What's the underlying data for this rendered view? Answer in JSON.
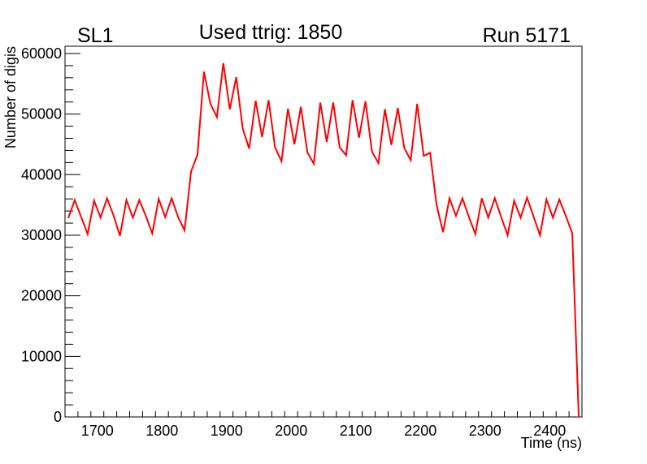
{
  "chart_data": {
    "type": "line",
    "title": "Used ttrig: 1850",
    "left_label": "SL1",
    "right_label": "Run 5171",
    "xlabel": "Time (ns)",
    "ylabel": "Number of digis",
    "xlim": [
      1650,
      2450
    ],
    "ylim": [
      0,
      61200
    ],
    "x_ticks": [
      1700,
      1800,
      1900,
      2000,
      2100,
      2200,
      2300,
      2400
    ],
    "y_ticks": [
      0,
      10000,
      20000,
      30000,
      40000,
      50000,
      60000
    ],
    "grid": false,
    "series": [
      {
        "name": "digis",
        "color": "#ff0000",
        "x_start": 1655,
        "x_step": 10,
        "values": [
          32800,
          35800,
          33000,
          30200,
          35700,
          32900,
          36100,
          33300,
          29900,
          35800,
          32900,
          35800,
          33200,
          30300,
          36000,
          33000,
          36100,
          33000,
          30800,
          40500,
          43300,
          57000,
          51700,
          49500,
          58400,
          50800,
          56100,
          47600,
          44300,
          52200,
          46200,
          52300,
          44500,
          42200,
          50900,
          45000,
          51200,
          43700,
          41800,
          51900,
          45400,
          51900,
          44500,
          43200,
          52300,
          46100,
          52100,
          43800,
          41900,
          50800,
          44900,
          51000,
          44400,
          42400,
          51700,
          43100,
          43600,
          35000,
          30500,
          36100,
          33200,
          36100,
          33000,
          30200,
          36100,
          32900,
          36100,
          33000,
          30000,
          35700,
          32900,
          36200,
          33100,
          30000,
          35900,
          32900,
          35900,
          33200,
          30300,
          0
        ]
      }
    ]
  }
}
